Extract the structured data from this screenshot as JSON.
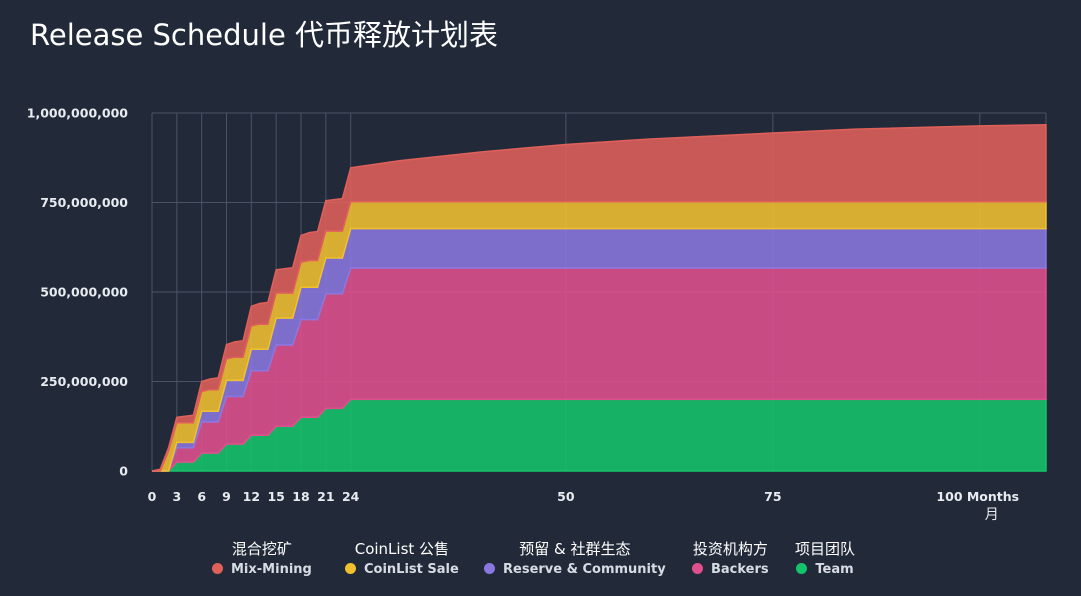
{
  "title": "Release Schedule  代币释放计划表",
  "colors": {
    "background": "#222a3a",
    "grid": "#4a5366"
  },
  "legend": [
    {
      "cn": "混合挖矿",
      "en": "Mix-Mining",
      "color": "#e0605a"
    },
    {
      "cn": "CoinList 公售",
      "en": "CoinList Sale",
      "color": "#f0c030"
    },
    {
      "cn": "预留 & 社群生态",
      "en": "Reserve & Community",
      "color": "#8a78e0"
    },
    {
      "cn": "投资机构方",
      "en": "Backers",
      "color": "#e0508e"
    },
    {
      "cn": "项目团队",
      "en": "Team",
      "color": "#14c46a"
    }
  ],
  "chart_data": {
    "type": "area",
    "stacked": true,
    "xlim": [
      0,
      108
    ],
    "ylim": [
      0,
      1000000000
    ],
    "x_ticks": [
      "0",
      "3",
      "6",
      "9",
      "12",
      "15",
      "18",
      "21",
      "24",
      "50",
      "75",
      "100 Months"
    ],
    "x_tick_values": [
      0,
      3,
      6,
      9,
      12,
      15,
      18,
      21,
      24,
      50,
      75,
      100
    ],
    "x_unit_label": "月",
    "y_ticks": [
      "0",
      "250,000,000",
      "500,000,000",
      "750,000,000",
      "1,000,000,000"
    ],
    "y_tick_values": [
      0,
      250000000,
      500000000,
      750000000,
      1000000000
    ],
    "grid": true,
    "legend_position": "bottom",
    "series": [
      {
        "name": "Team",
        "points": [
          [
            0,
            0
          ],
          [
            1,
            0
          ],
          [
            2,
            0
          ],
          [
            3,
            25000000
          ],
          [
            4,
            25000000
          ],
          [
            5,
            25000000
          ],
          [
            6,
            50000000
          ],
          [
            7,
            50000000
          ],
          [
            8,
            50000000
          ],
          [
            9,
            75000000
          ],
          [
            10,
            75000000
          ],
          [
            11,
            75000000
          ],
          [
            12,
            100000000
          ],
          [
            13,
            100000000
          ],
          [
            14,
            100000000
          ],
          [
            15,
            125000000
          ],
          [
            16,
            125000000
          ],
          [
            17,
            125000000
          ],
          [
            18,
            150000000
          ],
          [
            19,
            150000000
          ],
          [
            20,
            150000000
          ],
          [
            21,
            175000000
          ],
          [
            22,
            175000000
          ],
          [
            23,
            175000000
          ],
          [
            24,
            200000000
          ],
          [
            108,
            200000000
          ]
        ]
      },
      {
        "name": "Backers",
        "points": [
          [
            0,
            0
          ],
          [
            1,
            0
          ],
          [
            2,
            0
          ],
          [
            3,
            40000000
          ],
          [
            4,
            40000000
          ],
          [
            5,
            40000000
          ],
          [
            6,
            87000000
          ],
          [
            7,
            87000000
          ],
          [
            8,
            87000000
          ],
          [
            9,
            133000000
          ],
          [
            10,
            133000000
          ],
          [
            11,
            133000000
          ],
          [
            12,
            180000000
          ],
          [
            13,
            180000000
          ],
          [
            14,
            180000000
          ],
          [
            15,
            227000000
          ],
          [
            16,
            227000000
          ],
          [
            17,
            227000000
          ],
          [
            18,
            273000000
          ],
          [
            19,
            273000000
          ],
          [
            20,
            273000000
          ],
          [
            21,
            320000000
          ],
          [
            22,
            320000000
          ],
          [
            23,
            320000000
          ],
          [
            24,
            367000000
          ],
          [
            108,
            367000000
          ]
        ]
      },
      {
        "name": "Reserve & Community",
        "points": [
          [
            0,
            0
          ],
          [
            1,
            0
          ],
          [
            2,
            0
          ],
          [
            3,
            15000000
          ],
          [
            4,
            15000000
          ],
          [
            5,
            15000000
          ],
          [
            6,
            30000000
          ],
          [
            7,
            30000000
          ],
          [
            8,
            30000000
          ],
          [
            9,
            45000000
          ],
          [
            10,
            45000000
          ],
          [
            11,
            45000000
          ],
          [
            12,
            60000000
          ],
          [
            13,
            60000000
          ],
          [
            14,
            60000000
          ],
          [
            15,
            75000000
          ],
          [
            16,
            75000000
          ],
          [
            17,
            75000000
          ],
          [
            18,
            90000000
          ],
          [
            19,
            90000000
          ],
          [
            20,
            90000000
          ],
          [
            21,
            100000000
          ],
          [
            22,
            100000000
          ],
          [
            23,
            100000000
          ],
          [
            24,
            110000000
          ],
          [
            108,
            110000000
          ]
        ]
      },
      {
        "name": "CoinList Sale",
        "points": [
          [
            0,
            0
          ],
          [
            1,
            0
          ],
          [
            2,
            55000000
          ],
          [
            3,
            55000000
          ],
          [
            4,
            55000000
          ],
          [
            5,
            55000000
          ],
          [
            6,
            55000000
          ],
          [
            7,
            60000000
          ],
          [
            8,
            60000000
          ],
          [
            9,
            60000000
          ],
          [
            10,
            65000000
          ],
          [
            11,
            65000000
          ],
          [
            12,
            65000000
          ],
          [
            13,
            70000000
          ],
          [
            14,
            70000000
          ],
          [
            15,
            70000000
          ],
          [
            16,
            70000000
          ],
          [
            17,
            70000000
          ],
          [
            18,
            70000000
          ],
          [
            19,
            75000000
          ],
          [
            20,
            75000000
          ],
          [
            21,
            75000000
          ],
          [
            22,
            75000000
          ],
          [
            23,
            75000000
          ],
          [
            24,
            75000000
          ],
          [
            108,
            75000000
          ]
        ]
      },
      {
        "name": "Mix-Mining",
        "points": [
          [
            0,
            0
          ],
          [
            1,
            5000000
          ],
          [
            2,
            10000000
          ],
          [
            3,
            15000000
          ],
          [
            4,
            18000000
          ],
          [
            5,
            21000000
          ],
          [
            6,
            28000000
          ],
          [
            7,
            30000000
          ],
          [
            8,
            33000000
          ],
          [
            9,
            40000000
          ],
          [
            10,
            43000000
          ],
          [
            11,
            46000000
          ],
          [
            12,
            55000000
          ],
          [
            13,
            58000000
          ],
          [
            14,
            61000000
          ],
          [
            15,
            65000000
          ],
          [
            16,
            68000000
          ],
          [
            17,
            71000000
          ],
          [
            18,
            75000000
          ],
          [
            19,
            78000000
          ],
          [
            20,
            81000000
          ],
          [
            21,
            85000000
          ],
          [
            22,
            88000000
          ],
          [
            23,
            91000000
          ],
          [
            24,
            95000000
          ],
          [
            30,
            115000000
          ],
          [
            40,
            140000000
          ],
          [
            50,
            160000000
          ],
          [
            60,
            175000000
          ],
          [
            75,
            192000000
          ],
          [
            85,
            203000000
          ],
          [
            100,
            212000000
          ],
          [
            108,
            215000000
          ]
        ]
      }
    ]
  }
}
